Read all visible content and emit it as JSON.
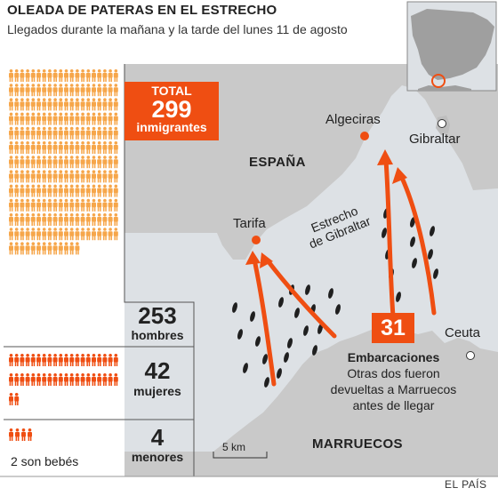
{
  "header": {
    "title": "OLEADA DE PATERAS EN EL ESTRECHO",
    "subtitle": "Llegados durante la mañana y la tarde del lunes 11 de agosto"
  },
  "total": {
    "label": "TOTAL",
    "value": "299",
    "unit": "inmigrantes"
  },
  "breakdown": {
    "hombres": {
      "value": "253",
      "label": "hombres"
    },
    "mujeres": {
      "value": "42",
      "label": "mujeres"
    },
    "menores": {
      "value": "4",
      "label": "menores",
      "note": "2 son bebés"
    }
  },
  "map": {
    "labels": {
      "espana": "ESPAÑA",
      "marruecos": "MARRUECOS",
      "algeciras": "Algeciras",
      "gibraltar": "Gibraltar",
      "tarifa": "Tarifa",
      "ceuta": "Ceuta",
      "strait_line1": "Estrecho",
      "strait_line2": "de Gibraltar"
    },
    "embarcaciones": {
      "count": "31",
      "title": "Embarcaciones",
      "note": "Otras dos fueron devueltas a Marruecos antes de llegar"
    },
    "scale": "5 km"
  },
  "colors": {
    "accent": "#ef4e12",
    "man": "#f6a64a",
    "sea": "#dde1e5",
    "land": "#c9c9c9",
    "dark_land": "#9f9f9f"
  },
  "source": "EL PAÍS"
}
